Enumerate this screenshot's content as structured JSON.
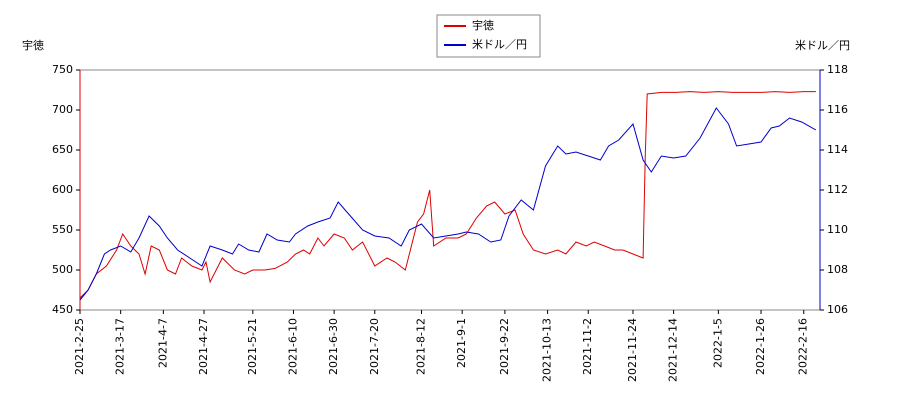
{
  "chart_data": {
    "type": "line",
    "y_label": "宇徳",
    "y2_label": "米ドル／円",
    "xlim": [
      "2021-2-25",
      "2022-2-24"
    ],
    "xticks": [
      "2021-2-25",
      "2021-3-17",
      "2021-4-7",
      "2021-4-27",
      "2021-5-21",
      "2021-6-10",
      "2021-6-30",
      "2021-7-20",
      "2021-8-12",
      "2021-9-1",
      "2021-9-22",
      "2021-10-13",
      "2021-11-2",
      "2021-11-24",
      "2021-12-14",
      "2022-1-5",
      "2022-1-26",
      "2022-2-16"
    ],
    "ylim": [
      450,
      750
    ],
    "yticks": [
      450,
      500,
      550,
      600,
      650,
      700,
      750
    ],
    "y2lim": [
      106,
      118
    ],
    "y2ticks": [
      106,
      108,
      110,
      112,
      114,
      116,
      118
    ],
    "legend": "top",
    "series": [
      {
        "name": "宇徳",
        "color": "#dd0000",
        "x": [
          "2021-2-25",
          "2021-3-1",
          "2021-3-5",
          "2021-3-10",
          "2021-3-15",
          "2021-3-18",
          "2021-3-22",
          "2021-3-26",
          "2021-3-29",
          "2021-4-1",
          "2021-4-5",
          "2021-4-9",
          "2021-4-13",
          "2021-4-16",
          "2021-4-21",
          "2021-4-26",
          "2021-4-28",
          "2021-4-30",
          "2021-5-6",
          "2021-5-12",
          "2021-5-17",
          "2021-5-21",
          "2021-5-27",
          "2021-6-1",
          "2021-6-7",
          "2021-6-11",
          "2021-6-15",
          "2021-6-18",
          "2021-6-22",
          "2021-6-25",
          "2021-6-30",
          "2021-7-5",
          "2021-7-9",
          "2021-7-14",
          "2021-7-20",
          "2021-7-26",
          "2021-7-30",
          "2021-8-4",
          "2021-8-10",
          "2021-8-13",
          "2021-8-16",
          "2021-8-18",
          "2021-8-24",
          "2021-8-30",
          "2021-9-3",
          "2021-9-8",
          "2021-9-13",
          "2021-9-17",
          "2021-9-22",
          "2021-9-27",
          "2021-10-1",
          "2021-10-6",
          "2021-10-12",
          "2021-10-18",
          "2021-10-22",
          "2021-10-27",
          "2021-11-1",
          "2021-11-5",
          "2021-11-10",
          "2021-11-15",
          "2021-11-19",
          "2021-11-24",
          "2021-11-29",
          "2021-11-30",
          "2021-12-1",
          "2021-12-8",
          "2021-12-15",
          "2021-12-22",
          "2021-12-29",
          "2022-1-5",
          "2022-1-12",
          "2022-1-19",
          "2022-1-26",
          "2022-2-2",
          "2022-2-9",
          "2022-2-16",
          "2022-2-22"
        ],
        "values": [
          465,
          475,
          495,
          505,
          525,
          545,
          530,
          520,
          495,
          530,
          525,
          500,
          495,
          515,
          505,
          500,
          510,
          485,
          515,
          500,
          495,
          500,
          500,
          502,
          510,
          520,
          525,
          520,
          540,
          530,
          545,
          540,
          525,
          535,
          505,
          515,
          510,
          500,
          560,
          570,
          600,
          530,
          540,
          540,
          545,
          565,
          580,
          585,
          570,
          575,
          545,
          525,
          520,
          525,
          520,
          535,
          530,
          535,
          530,
          525,
          525,
          520,
          515,
          640,
          720,
          722,
          722,
          723,
          722,
          723,
          722,
          722,
          722,
          723,
          722,
          723,
          723
        ]
      },
      {
        "name": "米ドル／円",
        "color": "#0000cc",
        "axis": "y2",
        "x": [
          "2021-2-25",
          "2021-3-1",
          "2021-3-5",
          "2021-3-9",
          "2021-3-12",
          "2021-3-17",
          "2021-3-22",
          "2021-3-26",
          "2021-3-31",
          "2021-4-5",
          "2021-4-9",
          "2021-4-14",
          "2021-4-20",
          "2021-4-26",
          "2021-4-30",
          "2021-5-6",
          "2021-5-11",
          "2021-5-14",
          "2021-5-19",
          "2021-5-24",
          "2021-5-28",
          "2021-6-2",
          "2021-6-8",
          "2021-6-11",
          "2021-6-17",
          "2021-6-22",
          "2021-6-28",
          "2021-7-2",
          "2021-7-8",
          "2021-7-14",
          "2021-7-20",
          "2021-7-27",
          "2021-8-2",
          "2021-8-6",
          "2021-8-12",
          "2021-8-18",
          "2021-8-24",
          "2021-8-30",
          "2021-9-3",
          "2021-9-9",
          "2021-9-15",
          "2021-9-20",
          "2021-9-24",
          "2021-9-30",
          "2021-10-6",
          "2021-10-12",
          "2021-10-18",
          "2021-10-22",
          "2021-10-27",
          "2021-11-2",
          "2021-11-8",
          "2021-11-12",
          "2021-11-17",
          "2021-11-24",
          "2021-11-29",
          "2021-12-3",
          "2021-12-8",
          "2021-12-14",
          "2021-12-20",
          "2021-12-27",
          "2022-1-4",
          "2022-1-10",
          "2022-1-14",
          "2022-1-20",
          "2022-1-26",
          "2022-1-31",
          "2022-2-4",
          "2022-2-9",
          "2022-2-15",
          "2022-2-22"
        ],
        "values": [
          106.5,
          107,
          107.8,
          108.8,
          109.0,
          109.2,
          108.9,
          109.6,
          110.7,
          110.2,
          109.6,
          109.0,
          108.6,
          108.2,
          109.2,
          109.0,
          108.8,
          109.3,
          109.0,
          108.9,
          109.8,
          109.5,
          109.4,
          109.8,
          110.2,
          110.4,
          110.6,
          111.4,
          110.7,
          110.0,
          109.7,
          109.6,
          109.2,
          110.0,
          110.3,
          109.6,
          109.7,
          109.8,
          109.9,
          109.8,
          109.4,
          109.5,
          110.7,
          111.5,
          111.0,
          113.2,
          114.2,
          113.8,
          113.9,
          113.7,
          113.5,
          114.2,
          114.5,
          115.3,
          113.5,
          112.9,
          113.7,
          113.6,
          113.7,
          114.6,
          116.1,
          115.3,
          114.2,
          114.3,
          114.4,
          115.1,
          115.2,
          115.6,
          115.4,
          115.0
        ]
      }
    ]
  }
}
